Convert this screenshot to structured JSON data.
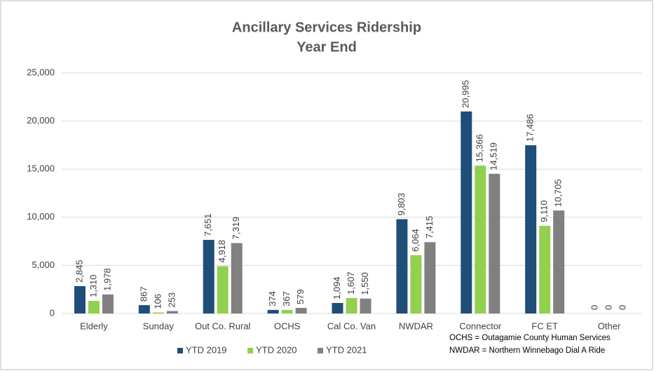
{
  "chart_data": {
    "type": "bar",
    "title": "Ancillary Services Ridership",
    "subtitle": "Year End",
    "categories": [
      "Elderly",
      "Sunday",
      "Out Co. Rural",
      "OCHS",
      "Cal Co. Van",
      "NWDAR",
      "Connector",
      "FC ET",
      "Other"
    ],
    "series": [
      {
        "name": "YTD 2019",
        "color": "#1f4e79",
        "values": [
          2845,
          867,
          7651,
          374,
          1094,
          9803,
          20995,
          17486,
          0
        ],
        "value_labels": [
          "2,845",
          "867",
          "7,651",
          "374",
          "1,094",
          "9,803",
          "20,995",
          "17,486",
          "0"
        ]
      },
      {
        "name": "YTD 2020",
        "color": "#92d050",
        "values": [
          1310,
          106,
          4918,
          367,
          1607,
          6064,
          15366,
          9110,
          0
        ],
        "value_labels": [
          "1,310",
          "106",
          "4,918",
          "367",
          "1,607",
          "6,064",
          "15,366",
          "9,110",
          "0"
        ]
      },
      {
        "name": "YTD 2021",
        "color": "#808080",
        "values": [
          1978,
          253,
          7319,
          579,
          1550,
          7415,
          14519,
          10705,
          0
        ],
        "value_labels": [
          "1,978",
          "253",
          "7,319",
          "579",
          "1,550",
          "7,415",
          "14,519",
          "10,705",
          "0"
        ]
      }
    ],
    "ylim": [
      0,
      25000
    ],
    "yticks": [
      0,
      {
        "value": 5000,
        "label": "5,000"
      },
      {
        "value": 10000,
        "label": "10,000"
      },
      {
        "value": 15000,
        "label": "15,000"
      },
      {
        "value": 20000,
        "label": "20,000"
      },
      {
        "value": 25000,
        "label": "25,000"
      }
    ],
    "grid": true,
    "legend": "bottom",
    "annotations": [
      "OCHS = Outagamie County Human Services",
      "NWDAR = Northern Winnebago Dial A Ride"
    ]
  }
}
